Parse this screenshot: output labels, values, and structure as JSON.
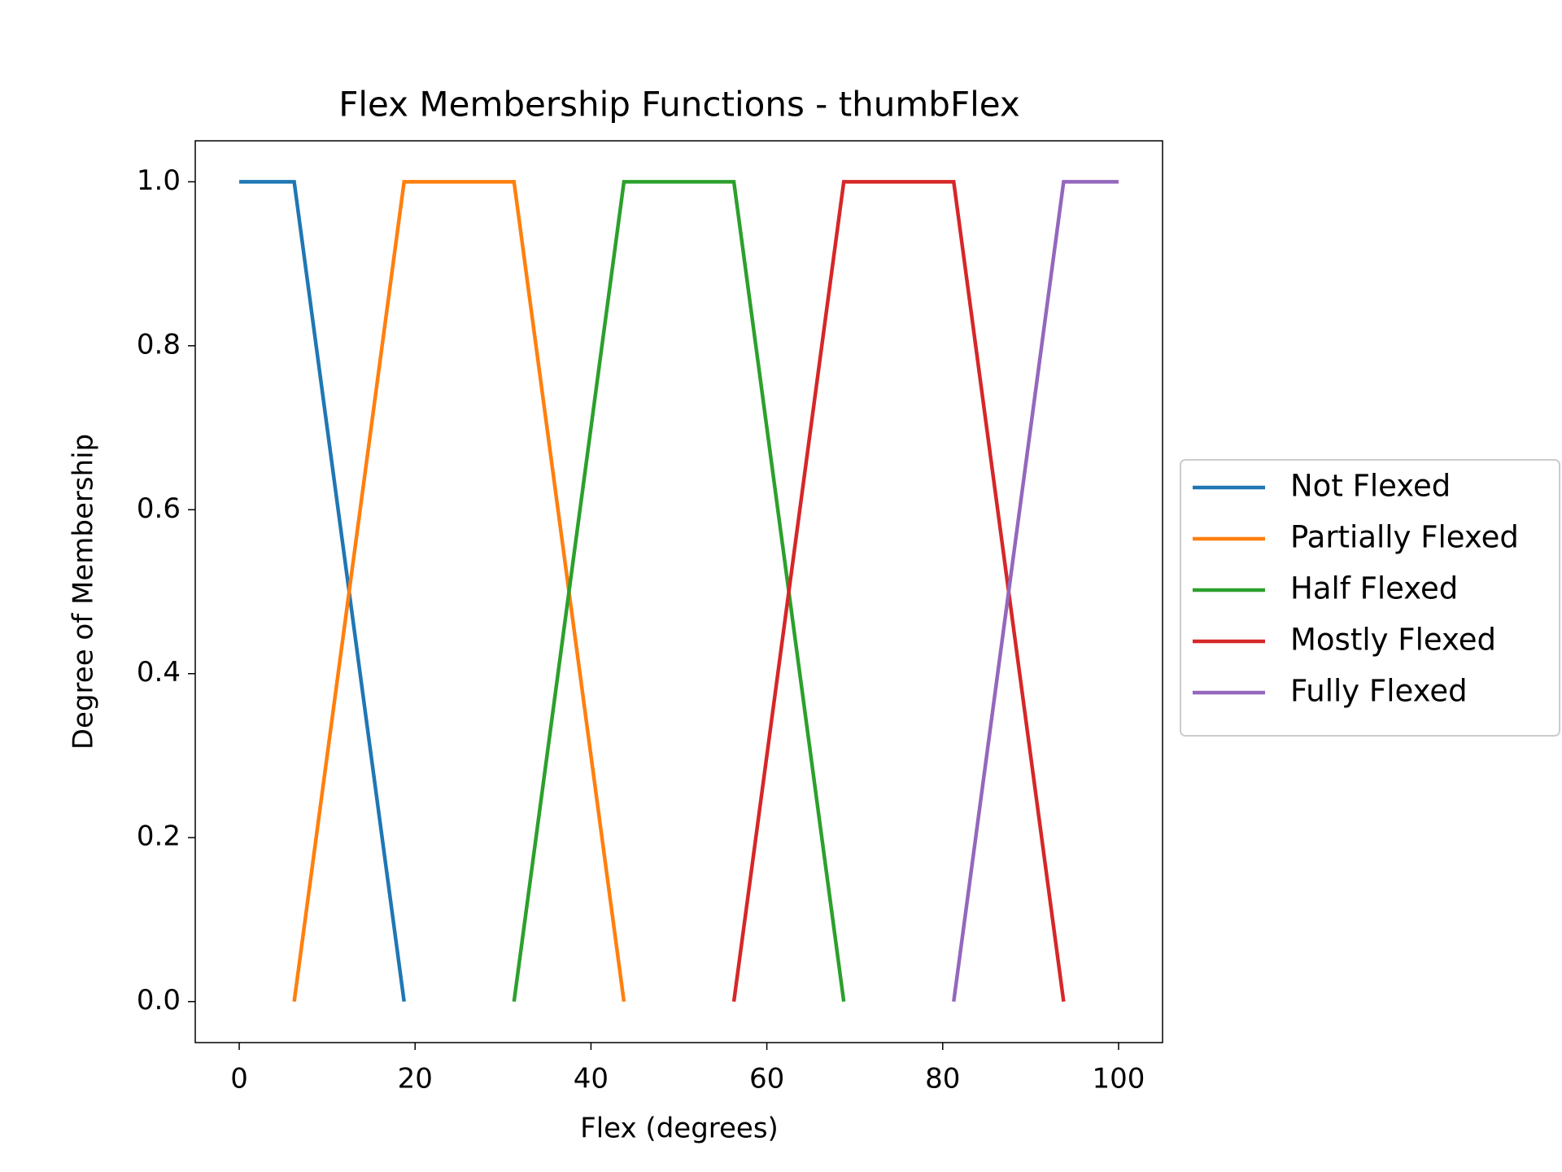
{
  "chart_data": {
    "type": "line",
    "title": "Flex Membership Functions - thumbFlex",
    "x_label": "Flex (degrees)",
    "y_label": "Degree of Membership",
    "xlim": [
      -5,
      105
    ],
    "xticks": [
      0,
      20,
      40,
      60,
      80,
      100
    ],
    "ylim": [
      -0.05,
      1.05
    ],
    "yticks": [
      {
        "value": 0,
        "label": "0.0"
      },
      {
        "value": 0.2,
        "label": "0.2"
      },
      {
        "value": 0.4,
        "label": "0.4"
      },
      {
        "value": 0.6,
        "label": "0.6"
      },
      {
        "value": 0.8,
        "label": "0.8"
      },
      {
        "value": 1,
        "label": "1.0"
      }
    ],
    "grid": false,
    "legend": "outside right",
    "series": [
      {
        "name": "Not Flexed",
        "color": "#1f77b4",
        "x": [
          0,
          6.25,
          18.75
        ],
        "values": [
          1,
          1,
          0
        ]
      },
      {
        "name": "Partially Flexed",
        "color": "#ff7f0e",
        "x": [
          6.25,
          18.75,
          31.25,
          43.75
        ],
        "values": [
          0,
          1,
          1,
          0
        ]
      },
      {
        "name": "Half Flexed",
        "color": "#2ca02c",
        "x": [
          31.25,
          43.75,
          56.25,
          68.75
        ],
        "values": [
          0,
          1,
          1,
          0
        ]
      },
      {
        "name": "Mostly Flexed",
        "color": "#d62728",
        "x": [
          56.25,
          68.75,
          81.25,
          93.75
        ],
        "values": [
          0,
          1,
          1,
          0
        ]
      },
      {
        "name": "Fully Flexed",
        "color": "#9467bd",
        "x": [
          81.25,
          93.75,
          100
        ],
        "values": [
          0,
          1,
          1
        ]
      }
    ]
  }
}
